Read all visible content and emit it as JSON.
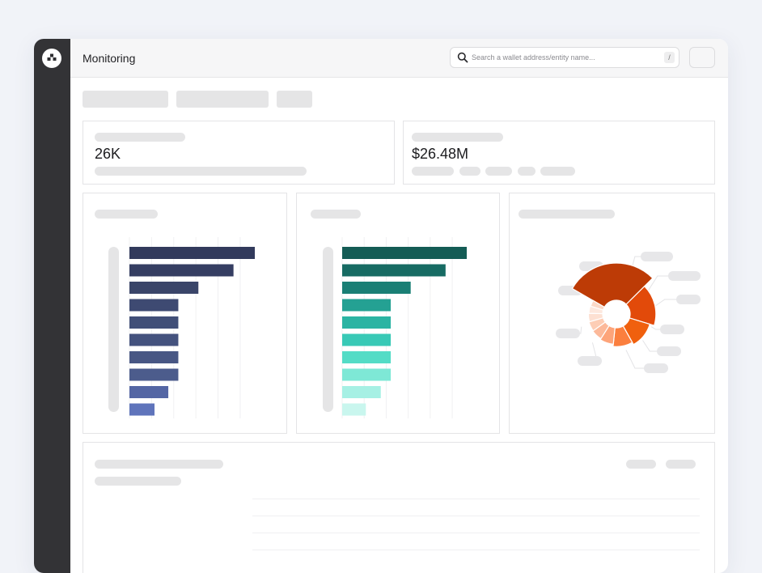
{
  "header": {
    "title": "Monitoring",
    "search": {
      "placeholder": "Search a wallet address/entity name...",
      "shortcut": "/"
    }
  },
  "stats": [
    {
      "value": "26K"
    },
    {
      "value": "$26.48M"
    }
  ],
  "icons": {
    "logo": "logo-icon",
    "search": "search-icon"
  },
  "chart_data": [
    {
      "type": "bar",
      "orientation": "horizontal",
      "values": [
        100,
        83,
        55,
        39,
        39,
        39,
        39,
        39,
        31,
        20
      ],
      "colors": [
        "#323a5c",
        "#353e62",
        "#3a4569",
        "#3e4a72",
        "#414f78",
        "#44527e",
        "#485784",
        "#4c5c8c",
        "#5466a4",
        "#5f74bb"
      ]
    },
    {
      "type": "bar",
      "orientation": "horizontal",
      "values": [
        100,
        83,
        55,
        39,
        39,
        39,
        39,
        39,
        31,
        19
      ],
      "colors": [
        "#145c55",
        "#176b63",
        "#1a7f75",
        "#24a193",
        "#2bb4a3",
        "#38c9b6",
        "#54dcc6",
        "#7ee8d6",
        "#a6f0e4",
        "#c9f6ee"
      ]
    },
    {
      "type": "pie",
      "values": [
        48,
        28,
        20,
        16,
        12,
        10,
        9,
        8,
        7,
        6
      ],
      "colors": [
        "#bd3b06",
        "#e24a0a",
        "#f0600e",
        "#fb7f3e",
        "#fda47a",
        "#fcb99a",
        "#fdcdb5",
        "#fde0d2",
        "#fde8de",
        "#fbd9c8"
      ]
    }
  ]
}
